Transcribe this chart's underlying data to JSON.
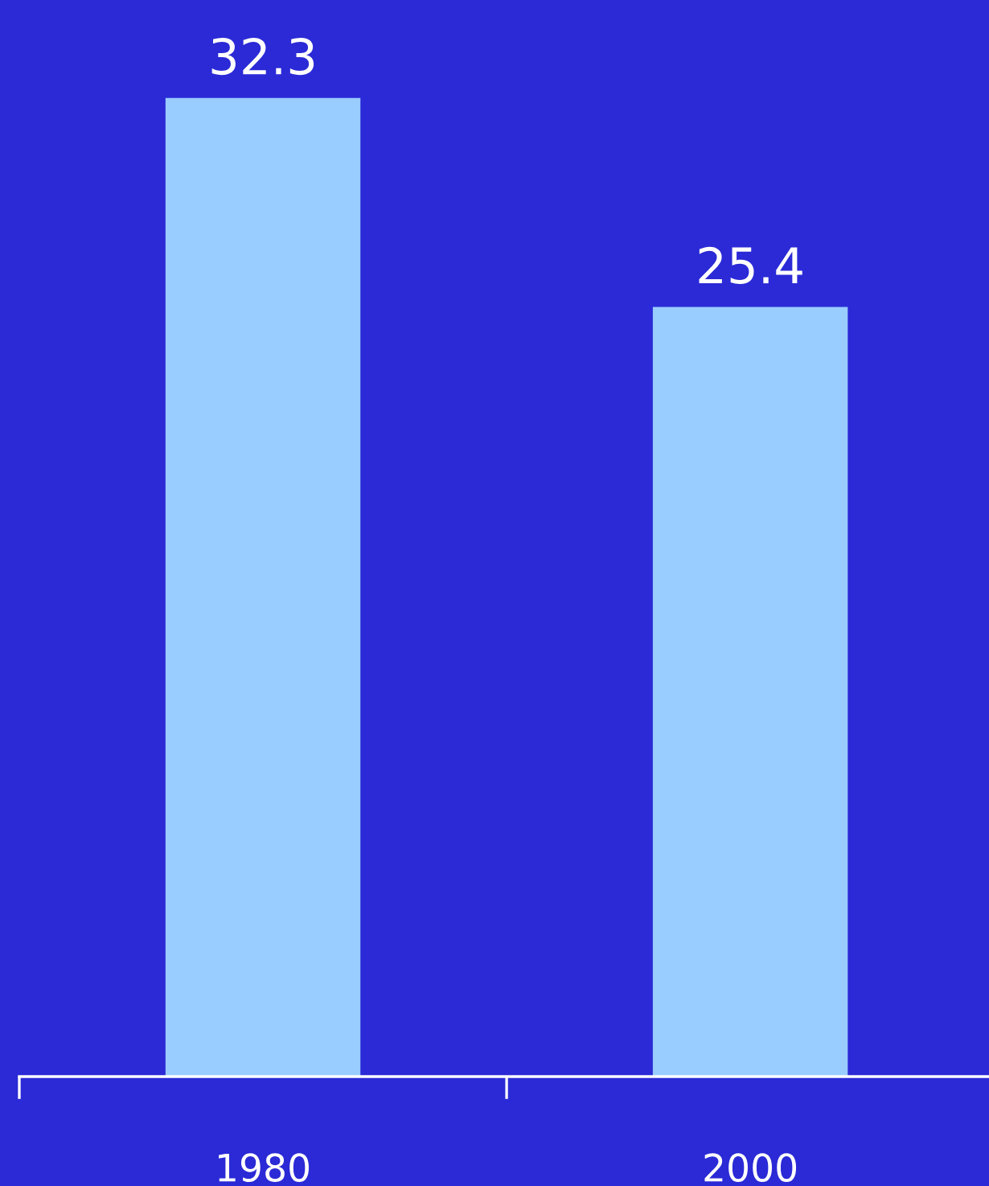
{
  "chart_data": {
    "type": "bar",
    "categories": [
      "1980",
      "2000"
    ],
    "values": [
      32.3,
      25.4
    ],
    "color": "#99ccff",
    "data_labels": true,
    "grid": false,
    "legend": false
  }
}
